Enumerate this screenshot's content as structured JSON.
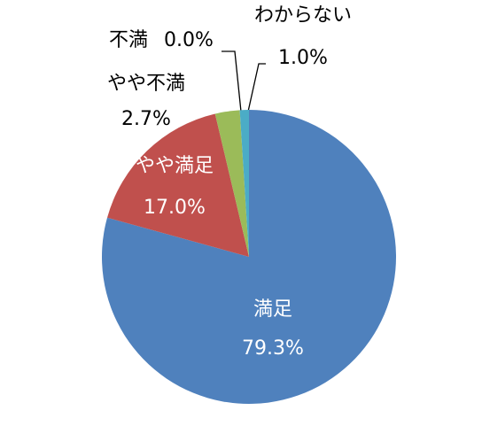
{
  "chart_data": {
    "type": "pie",
    "categories": [
      "満足",
      "やや満足",
      "やや不満",
      "不満",
      "わからない"
    ],
    "values": [
      79.3,
      17.0,
      2.7,
      0.0,
      1.0
    ],
    "value_labels": [
      "79.3%",
      "17.0%",
      "2.7%",
      "0.0%",
      "1.0%"
    ],
    "colors": [
      "#4f81bd",
      "#c0504d",
      "#9bbb59",
      "#8064a2",
      "#4bacc6"
    ]
  }
}
